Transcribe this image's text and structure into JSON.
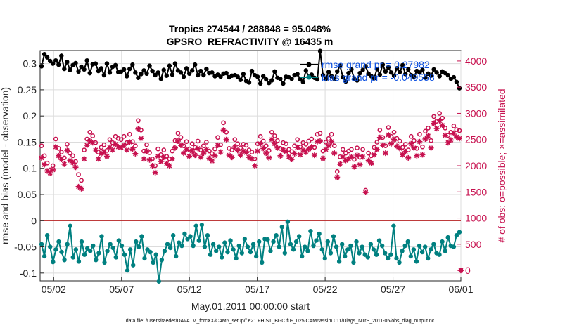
{
  "chart_data": {
    "type": "line",
    "title": "Tropics 274544 / 288848 = 95.048%",
    "subtitle": "GPSRO_REFRACTIVITY @ 16435 m",
    "xlabel": "May.01,2011 00:00:00 start",
    "ylabel_left": "rmse and bias (model - observation)",
    "ylabel_right": "# of obs: o=possible; ×=assimilated",
    "x_range": [
      0,
      31
    ],
    "x_ticks": [
      {
        "day": 1,
        "label": "05/02"
      },
      {
        "day": 6,
        "label": "05/07"
      },
      {
        "day": 11,
        "label": "05/12"
      },
      {
        "day": 16,
        "label": "05/17"
      },
      {
        "day": 21,
        "label": "05/22"
      },
      {
        "day": 26,
        "label": "05/27"
      },
      {
        "day": 31,
        "label": "06/01"
      }
    ],
    "ylim_left": [
      -0.115,
      0.325
    ],
    "ylim_right": [
      -200,
      4200
    ],
    "yticks_left": [
      "0.3",
      "0.25",
      "0.2",
      "0.15",
      "0.1",
      "0.05",
      "0",
      "-0.05",
      "-0.1"
    ],
    "yticks_right": [
      "4000",
      "3500",
      "3000",
      "2500",
      "2000",
      "1500",
      "1000",
      "500",
      "0"
    ],
    "legend": [
      {
        "label": "rmse grand pr = 0.27982",
        "color": "#000000"
      },
      {
        "label": "bias grand pr = -0.049558",
        "color": "#008080"
      }
    ],
    "series": [
      {
        "name": "rmse",
        "axis": "left",
        "color": "#000000",
        "values": [
          0.295,
          0.318,
          0.312,
          0.305,
          0.3,
          0.306,
          0.298,
          0.315,
          0.29,
          0.303,
          0.288,
          0.297,
          0.301,
          0.285,
          0.294,
          0.289,
          0.306,
          0.282,
          0.299,
          0.3,
          0.286,
          0.291,
          0.278,
          0.3,
          0.283,
          0.294,
          0.297,
          0.284,
          0.285,
          0.289,
          0.276,
          0.29,
          0.298,
          0.283,
          0.273,
          0.28,
          0.287,
          0.281,
          0.296,
          0.286,
          0.278,
          0.283,
          0.271,
          0.288,
          0.277,
          0.296,
          0.279,
          0.3,
          0.287,
          0.283,
          0.275,
          0.291,
          0.281,
          0.287,
          0.298,
          0.278,
          0.286,
          0.278,
          0.29,
          0.282,
          0.283,
          0.276,
          0.279,
          0.275,
          0.281,
          0.282,
          0.274,
          0.277,
          0.278,
          0.275,
          0.269,
          0.28,
          0.267,
          0.264,
          0.286,
          0.278,
          0.275,
          0.262,
          0.276,
          0.27,
          0.263,
          0.268,
          0.285,
          0.273,
          0.271,
          0.262,
          0.275,
          0.274,
          0.271,
          0.278,
          0.28,
          0.27,
          0.265,
          0.287,
          0.275,
          0.279,
          0.273,
          0.27,
          0.324,
          0.278,
          0.271,
          0.284,
          0.276,
          0.271,
          0.285,
          0.296,
          0.274,
          0.266,
          0.282,
          0.289,
          0.271,
          0.268,
          0.282,
          0.288,
          0.295,
          0.281,
          0.276,
          0.272,
          0.29,
          0.279,
          0.298,
          0.285,
          0.293,
          0.283,
          0.277,
          0.291,
          0.284,
          0.297,
          0.28,
          0.289,
          0.278,
          0.275,
          0.286,
          0.283,
          0.288,
          0.273,
          0.281,
          0.277,
          0.289,
          0.283,
          0.276,
          0.285,
          0.282,
          0.278,
          0.271,
          0.274,
          0.265,
          0.253
        ]
      },
      {
        "name": "bias",
        "axis": "left",
        "color": "#008080",
        "values": [
          -0.045,
          -0.068,
          -0.028,
          -0.05,
          -0.079,
          -0.055,
          -0.04,
          -0.06,
          -0.075,
          -0.045,
          -0.01,
          -0.07,
          -0.055,
          -0.078,
          -0.04,
          -0.065,
          -0.053,
          -0.058,
          -0.048,
          -0.075,
          -0.062,
          -0.03,
          -0.08,
          -0.058,
          -0.045,
          -0.052,
          -0.07,
          -0.038,
          -0.048,
          -0.065,
          -0.095,
          -0.055,
          -0.085,
          -0.04,
          -0.05,
          -0.03,
          -0.072,
          -0.055,
          -0.06,
          -0.08,
          -0.065,
          -0.116,
          -0.075,
          -0.058,
          -0.045,
          -0.052,
          -0.028,
          -0.068,
          -0.042,
          -0.048,
          -0.025,
          -0.035,
          -0.03,
          -0.048,
          -0.01,
          -0.038,
          -0.008,
          -0.05,
          -0.028,
          -0.065,
          -0.045,
          -0.058,
          -0.05,
          -0.07,
          -0.042,
          -0.06,
          -0.038,
          -0.055,
          -0.072,
          -0.048,
          -0.062,
          -0.035,
          -0.05,
          -0.06,
          -0.045,
          -0.068,
          -0.04,
          -0.08,
          -0.035,
          -0.036,
          -0.058,
          -0.04,
          -0.028,
          -0.05,
          -0.012,
          -0.062,
          -0.002,
          -0.045,
          -0.055,
          -0.04,
          -0.03,
          -0.068,
          -0.05,
          -0.058,
          -0.02,
          -0.048,
          -0.038,
          -0.025,
          -0.055,
          -0.072,
          -0.04,
          -0.062,
          -0.03,
          -0.05,
          -0.078,
          -0.045,
          -0.068,
          -0.055,
          -0.048,
          -0.08,
          -0.04,
          -0.062,
          -0.05,
          -0.065,
          -0.07,
          -0.045,
          -0.055,
          -0.065,
          -0.038,
          -0.048,
          -0.062,
          -0.072,
          -0.065,
          -0.01,
          -0.072,
          -0.08,
          -0.058,
          -0.048,
          -0.04,
          -0.068,
          -0.055,
          -0.078,
          -0.048,
          -0.06,
          -0.05,
          -0.072,
          -0.055,
          -0.045,
          -0.062,
          -0.065,
          -0.04,
          -0.058,
          -0.032,
          -0.048,
          -0.05,
          -0.028,
          -0.022
        ]
      },
      {
        "name": "possible",
        "axis": "right",
        "color": "#c7114f",
        "marker": "circle",
        "values": [
          2380,
          2190,
          2050,
          1920,
          2000,
          2510,
          2330,
          2260,
          2150,
          2410,
          2240,
          2190,
          2080,
          1830,
          1720,
          2300,
          2510,
          2640,
          2570,
          2440,
          2260,
          2350,
          2400,
          2290,
          2500,
          2440,
          2560,
          2520,
          2500,
          2560,
          2440,
          2600,
          2460,
          2380,
          2860,
          2680,
          2280,
          2400,
          2250,
          2130,
          2000,
          2320,
          2210,
          2300,
          2180,
          2130,
          2280,
          2480,
          2620,
          2540,
          2380,
          2460,
          2320,
          2420,
          2350,
          2470,
          2300,
          2380,
          2450,
          2280,
          2230,
          2320,
          2540,
          2400,
          2820,
          2640,
          2330,
          2300,
          2500,
          2420,
          2340,
          2410,
          2390,
          2300,
          2260,
          2130,
          2420,
          2560,
          2470,
          2380,
          2290,
          2640,
          2570,
          2480,
          2330,
          2440,
          2420,
          2310,
          2270,
          2380,
          2500,
          2360,
          2440,
          2410,
          2470,
          2510,
          2350,
          2600,
          2620,
          2280,
          2450,
          2520,
          2600,
          2380,
          1890,
          2170,
          2310,
          2240,
          2280,
          2310,
          2120,
          2340,
          2160,
          2310,
          1530,
          2240,
          2190,
          2350,
          2450,
          2680,
          2540,
          2380,
          2730,
          2560,
          2640,
          2520,
          2470,
          2350,
          2410,
          2300,
          2560,
          2480,
          2330,
          2600,
          2360,
          2660,
          2720,
          2480,
          2940,
          2850,
          3000,
          2910,
          2720,
          2580,
          2640,
          2760,
          2690,
          2670
        ]
      },
      {
        "name": "assimilated",
        "axis": "right",
        "color": "#c7114f",
        "marker": "asterisk",
        "values": [
          2150,
          2020,
          1900,
          1860,
          1920,
          2360,
          2190,
          2120,
          2030,
          2290,
          2100,
          2060,
          1970,
          1600,
          1560,
          2130,
          2390,
          2470,
          2440,
          2300,
          2130,
          2230,
          2260,
          2180,
          2350,
          2300,
          2410,
          2360,
          2350,
          2390,
          2300,
          2450,
          2320,
          2230,
          2700,
          2520,
          2130,
          2280,
          2110,
          2000,
          1870,
          2180,
          2080,
          2160,
          2040,
          2000,
          2130,
          2340,
          2470,
          2390,
          2240,
          2310,
          2180,
          2280,
          2200,
          2330,
          2160,
          2240,
          2310,
          2140,
          2090,
          2190,
          2390,
          2260,
          2680,
          2500,
          2200,
          2160,
          2360,
          2290,
          2200,
          2280,
          2250,
          2160,
          2130,
          2000,
          2280,
          2420,
          2330,
          2240,
          2150,
          2500,
          2420,
          2340,
          2190,
          2300,
          2270,
          2170,
          2120,
          2230,
          2350,
          2210,
          2300,
          2260,
          2320,
          2360,
          2200,
          2460,
          2470,
          2140,
          2310,
          2380,
          2460,
          2240,
          1780,
          2030,
          2170,
          2100,
          2130,
          2170,
          1980,
          2200,
          2020,
          2170,
          1490,
          2100,
          2050,
          2210,
          2310,
          2540,
          2390,
          2240,
          2590,
          2420,
          2500,
          2370,
          2330,
          2210,
          2270,
          2150,
          2420,
          2340,
          2190,
          2460,
          2210,
          2510,
          2570,
          2340,
          2810,
          2710,
          2860,
          2770,
          2580,
          2440,
          2490,
          2620,
          2550,
          2520
        ]
      }
    ],
    "extra_points": [
      {
        "series": "possible",
        "day": 31,
        "value": 0
      },
      {
        "series": "assimilated",
        "day": 31,
        "value": 0
      }
    ]
  },
  "footnote": "data file: /Users/raeder/DAI/ATM_forcXX/CAM6_setup/f.e21.FHIST_BGC.f09_025.CAM6assim.011/Diags_NTrS_2011-05/obs_diag_output.nc"
}
